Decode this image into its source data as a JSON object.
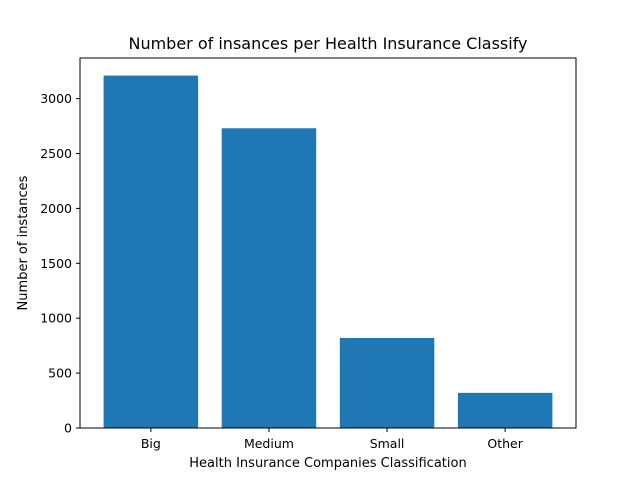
{
  "chart_data": {
    "type": "bar",
    "title": "Number of insances per Health Insurance Classify",
    "xlabel": "Health Insurance Companies Classification",
    "ylabel": "Number of instances",
    "categories": [
      "Big",
      "Medium",
      "Small",
      "Other"
    ],
    "values": [
      3210,
      2730,
      820,
      320
    ],
    "ylim": [
      0,
      3370
    ],
    "yticks": [
      0,
      500,
      1000,
      1500,
      2000,
      2500,
      3000
    ],
    "bar_color": "#1f77b4",
    "grid": false,
    "legend": "none"
  }
}
